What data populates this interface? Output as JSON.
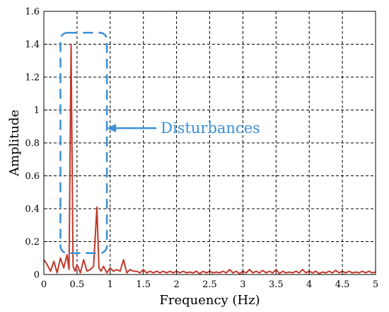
{
  "chart_data": {
    "type": "line",
    "xlabel": "Frequency (Hz)",
    "ylabel": "Amplitude",
    "xlim": [
      0,
      5
    ],
    "ylim": [
      0,
      1.6
    ],
    "x_ticks": [
      "0",
      "0.5",
      "1",
      "1.5",
      "2",
      "2.5",
      "3",
      "3.5",
      "4",
      "4.5",
      "5"
    ],
    "y_ticks": [
      "0",
      "0.2",
      "0.4",
      "0.6",
      "0.8",
      "1",
      "1.2",
      "1.4",
      "1.6"
    ],
    "grid": true,
    "line_color": "#c0392b",
    "series": [
      {
        "x": [
          0,
          0.05,
          0.1,
          0.15,
          0.2,
          0.25,
          0.3,
          0.35,
          0.38,
          0.41,
          0.44,
          0.47,
          0.5,
          0.55,
          0.6,
          0.65,
          0.7,
          0.75,
          0.8,
          0.83,
          0.86,
          0.9,
          0.95,
          1.0,
          1.05,
          1.1,
          1.15,
          1.2,
          1.25,
          1.3,
          1.35,
          1.4,
          1.45,
          1.5,
          1.55,
          1.6,
          1.65,
          1.7,
          1.75,
          1.8,
          1.85,
          1.9,
          1.95,
          2.0,
          2.05,
          2.1,
          2.15,
          2.2,
          2.25,
          2.3,
          2.35,
          2.4,
          2.45,
          2.5,
          2.55,
          2.6,
          2.65,
          2.7,
          2.75,
          2.8,
          2.85,
          2.9,
          2.95,
          3.0,
          3.05,
          3.1,
          3.15,
          3.2,
          3.25,
          3.3,
          3.35,
          3.4,
          3.45,
          3.5,
          3.55,
          3.6,
          3.65,
          3.7,
          3.75,
          3.8,
          3.85,
          3.9,
          3.95,
          4.0,
          4.05,
          4.1,
          4.15,
          4.2,
          4.25,
          4.3,
          4.35,
          4.4,
          4.45,
          4.5,
          4.55,
          4.6,
          4.65,
          4.7,
          4.75,
          4.8,
          4.85,
          4.9,
          4.95,
          5.0
        ],
        "y": [
          0.09,
          0.06,
          0.02,
          0.08,
          0.01,
          0.1,
          0.04,
          0.12,
          0.03,
          1.4,
          0.05,
          0.02,
          0.06,
          0.01,
          0.09,
          0.02,
          0.03,
          0.05,
          0.41,
          0.04,
          0.02,
          0.05,
          0.01,
          0.04,
          0.02,
          0.03,
          0.02,
          0.09,
          0.01,
          0.03,
          0.02,
          0.02,
          0.01,
          0.03,
          0.01,
          0.02,
          0.01,
          0.02,
          0.01,
          0.02,
          0.01,
          0.02,
          0.01,
          0.02,
          0.01,
          0.02,
          0.01,
          0.015,
          0.01,
          0.02,
          0.005,
          0.02,
          0.01,
          0.02,
          0.01,
          0.015,
          0.01,
          0.02,
          0.01,
          0.03,
          0.01,
          0.02,
          0.005,
          0.02,
          0.01,
          0.03,
          0.01,
          0.02,
          0.01,
          0.025,
          0.01,
          0.02,
          0.01,
          0.03,
          0.005,
          0.02,
          0.01,
          0.015,
          0.01,
          0.02,
          0.01,
          0.03,
          0.01,
          0.02,
          0.01,
          0.02,
          0.005,
          0.015,
          0.01,
          0.02,
          0.01,
          0.025,
          0.01,
          0.02,
          0.01,
          0.02,
          0.01,
          0.015,
          0.01,
          0.02,
          0.01,
          0.02,
          0.01,
          0.015
        ]
      }
    ],
    "annotation": {
      "label": "Disturbances",
      "color": "#3b8fd6",
      "box_x": [
        0.25,
        0.95
      ],
      "box_y": [
        0.13,
        1.47
      ],
      "arrow_to": [
        0.95,
        0.89
      ]
    }
  }
}
